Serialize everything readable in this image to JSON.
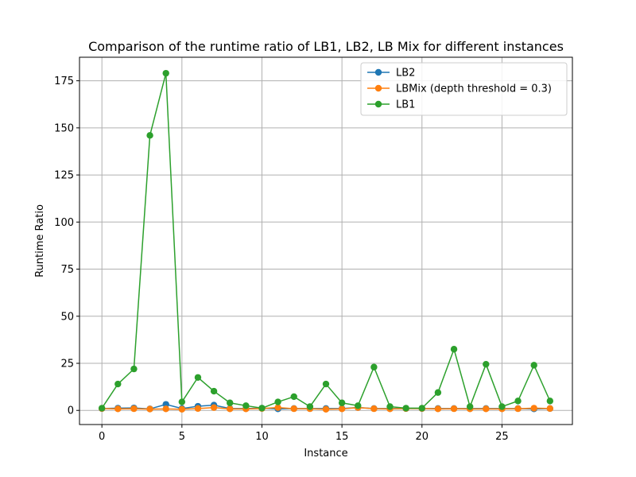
{
  "chart_data": {
    "type": "line",
    "title": "Comparison of the runtime ratio of LB1, LB2, LB Mix for different instances",
    "xlabel": "Instance",
    "ylabel": "Runtime Ratio",
    "xlim": [
      -1.4,
      29.4
    ],
    "ylim": [
      -7.5,
      187.5
    ],
    "xticks": [
      0,
      5,
      10,
      15,
      20,
      25
    ],
    "yticks": [
      0,
      25,
      50,
      75,
      100,
      125,
      150,
      175
    ],
    "grid": true,
    "legend_position": "top-right",
    "x": [
      0,
      1,
      2,
      3,
      4,
      5,
      6,
      7,
      8,
      9,
      10,
      11,
      12,
      13,
      14,
      15,
      16,
      17,
      18,
      19,
      20,
      21,
      22,
      23,
      24,
      25,
      26,
      27,
      28
    ],
    "series": [
      {
        "name": "LB2",
        "color": "#1f77b4",
        "marker": "circle",
        "values": [
          1.0,
          1.2,
          1.3,
          0.8,
          3.2,
          1.0,
          2.2,
          2.8,
          1.0,
          1.0,
          1.2,
          0.8,
          1.0,
          1.0,
          1.0,
          1.0,
          1.5,
          1.0,
          1.0,
          1.0,
          1.0,
          1.0,
          1.0,
          1.0,
          1.0,
          1.0,
          1.0,
          0.8,
          1.0
        ]
      },
      {
        "name": "LBMix (depth threshold = 0.3)",
        "color": "#ff7f0e",
        "marker": "circle",
        "values": [
          1.0,
          0.8,
          0.9,
          0.7,
          0.8,
          0.6,
          1.0,
          1.5,
          0.8,
          0.8,
          1.0,
          1.5,
          0.9,
          0.9,
          0.6,
          0.8,
          1.5,
          0.9,
          0.8,
          1.0,
          1.0,
          0.8,
          0.9,
          0.8,
          0.8,
          0.8,
          0.9,
          1.2,
          1.0
        ]
      },
      {
        "name": "LB1",
        "color": "#2ca02c",
        "marker": "circle",
        "values": [
          1.2,
          14.0,
          22.0,
          146.0,
          179.0,
          4.5,
          17.5,
          10.2,
          4.0,
          2.5,
          1.2,
          4.5,
          7.3,
          2.0,
          14.0,
          4.0,
          2.5,
          23.0,
          2.0,
          1.2,
          1.2,
          9.5,
          32.5,
          2.0,
          24.5,
          2.0,
          5.0,
          24.0,
          5.0
        ]
      }
    ]
  }
}
